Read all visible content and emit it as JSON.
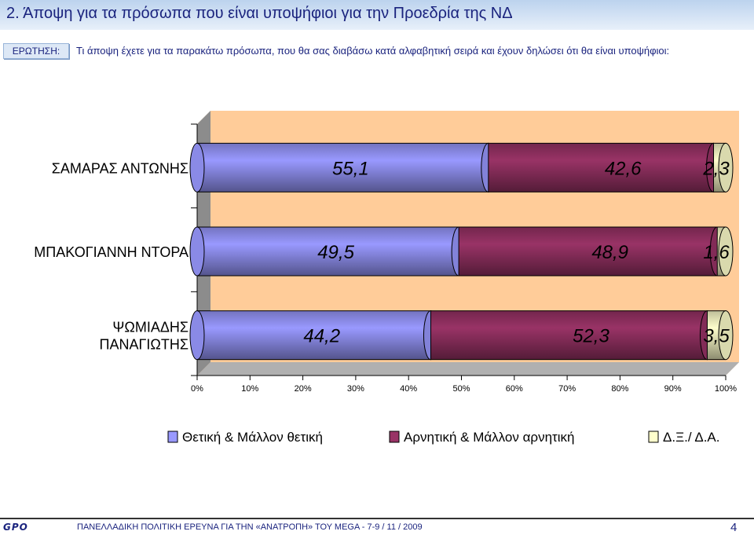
{
  "header": {
    "title": "2.  Άποψη για τα πρόσωπα που είναι υποψήφιοι για την Προεδρία της ΝΔ"
  },
  "question": {
    "label": "ΕΡΩΤΗΣΗ:",
    "text": "Τι άποψη έχετε για τα παρακάτω πρόσωπα, που θα σας διαβάσω κατά αλφαβητική σειρά και έχουν δηλώσει ότι θα είναι υποψήφιοι:"
  },
  "chart_data": {
    "type": "bar",
    "orientation": "horizontal",
    "stacked": "percent",
    "categories": [
      [
        "ΣΑΜΑΡΑΣ ΑΝΤΩΝΗΣ"
      ],
      [
        "ΜΠΑΚΟΓΙΑΝΝΗ ΝΤΟΡΑ"
      ],
      [
        "ΨΩΜΙΑΔΗΣ",
        "ΠΑΝΑΓΙΩΤΗΣ"
      ]
    ],
    "series": [
      {
        "name": "Θετική & Μάλλον θετική",
        "values": [
          55.1,
          49.5,
          44.2
        ],
        "labels": [
          "55,1",
          "49,5",
          "44,2"
        ],
        "color": "#9999ff"
      },
      {
        "name": "Αρνητική & Μάλλον αρνητική",
        "values": [
          42.6,
          48.9,
          52.3
        ],
        "labels": [
          "42,6",
          "48,9",
          "52,3"
        ],
        "color": "#993366"
      },
      {
        "name": "Δ.Ξ./ Δ.Α.",
        "values": [
          2.3,
          1.6,
          3.5
        ],
        "labels": [
          "2,3",
          "1,6",
          "3,5"
        ],
        "color": "#ffffcc"
      }
    ],
    "x_ticks": [
      "0%",
      "10%",
      "20%",
      "30%",
      "40%",
      "50%",
      "60%",
      "70%",
      "80%",
      "90%",
      "100%"
    ],
    "xlim": [
      0,
      100
    ],
    "legend_position": "bottom",
    "plot_background": "#ffcc99"
  },
  "footer": {
    "logo": "GPO",
    "text": "ΠΑΝΕΛΛΑΔΙΚΗ ΠΟΛΙΤΙΚΗ ΕΡΕΥΝΑ ΓΙΑ ΤΗΝ «ΑΝΑΤΡΟΠΗ» ΤΟΥ MEGA  -  7-9  / 11 / 2009",
    "page_number": "4"
  }
}
